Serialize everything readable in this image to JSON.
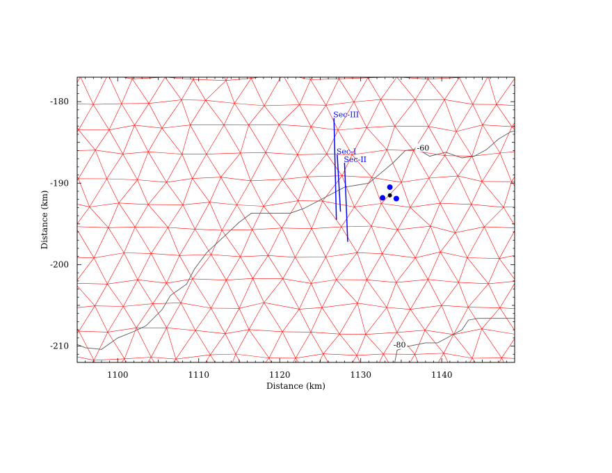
{
  "chart_data": {
    "type": "map",
    "title": "",
    "xlabel": "Distance (km)",
    "ylabel": "Distance (km)",
    "xlim": [
      1095,
      1149
    ],
    "ylim": [
      -212,
      -177
    ],
    "x_ticks": [
      1100,
      1110,
      1120,
      1130,
      1140
    ],
    "y_ticks": [
      -180,
      -190,
      -200,
      -210
    ],
    "x_tick_labels": [
      "1100",
      "1110",
      "1120",
      "1130",
      "1140"
    ],
    "y_tick_labels": [
      "-180",
      "-190",
      "-200",
      "-210"
    ],
    "mesh": {
      "description": "unstructured triangular mesh",
      "spacing_km": 3.6,
      "color": "#ff0000"
    },
    "sections": [
      {
        "name": "Sec-III",
        "color": "#0000ff",
        "start": [
          1126.7,
          -182.0
        ],
        "end": [
          1127.0,
          -194.5
        ]
      },
      {
        "name": "Sec-I",
        "color": "#0000ff",
        "start": [
          1127.1,
          -186.5
        ],
        "end": [
          1127.5,
          -193.5
        ]
      },
      {
        "name": "Sec-II",
        "color": "#0000ff",
        "start": [
          1128.0,
          -187.5
        ],
        "end": [
          1128.4,
          -197.2
        ]
      }
    ],
    "points_blue": [
      [
        1133.6,
        -190.5
      ],
      [
        1132.7,
        -191.8
      ],
      [
        1134.4,
        -191.9
      ]
    ],
    "points_black": [
      [
        1133.6,
        -191.5
      ]
    ],
    "contours": [
      {
        "label": "-60",
        "points": [
          [
            1121.3,
            -193.7
          ],
          [
            1123,
            -193.1
          ],
          [
            1125.5,
            -191.8
          ],
          [
            1128,
            -190.5
          ],
          [
            1131,
            -190.0
          ],
          [
            1132.8,
            -188.5
          ],
          [
            1134,
            -187.5
          ],
          [
            1135.5,
            -186.0
          ],
          [
            1137,
            -185.8
          ],
          [
            1138.5,
            -186.7
          ],
          [
            1140.5,
            -186.2
          ],
          [
            1142.5,
            -186.9
          ],
          [
            1144,
            -186.7
          ],
          [
            1145.5,
            -185.9
          ],
          [
            1147,
            -184.6
          ],
          [
            1148.5,
            -183.7
          ],
          [
            1149,
            -183.6
          ]
        ]
      },
      {
        "label": "",
        "points": [
          [
            1121.3,
            -193.7
          ],
          [
            1119,
            -193.7
          ],
          [
            1116.5,
            -193.7
          ],
          [
            1115,
            -194.8
          ],
          [
            1113.5,
            -196.2
          ],
          [
            1111,
            -198.5
          ],
          [
            1109.5,
            -200.5
          ],
          [
            1108.5,
            -202.4
          ],
          [
            1106.5,
            -203.8
          ],
          [
            1105.5,
            -205.5
          ],
          [
            1103.5,
            -207.5
          ],
          [
            1102,
            -208.2
          ],
          [
            1100,
            -209.0
          ],
          [
            1098,
            -210.4
          ],
          [
            1096,
            -210.2
          ],
          [
            1095,
            -209.8
          ]
        ]
      },
      {
        "label": "-80",
        "points": [
          [
            1134.2,
            -212
          ],
          [
            1134.5,
            -210.5
          ],
          [
            1136,
            -210.0
          ],
          [
            1138,
            -209.6
          ],
          [
            1139.5,
            -209.6
          ],
          [
            1141,
            -208.8
          ],
          [
            1142.5,
            -208.0
          ],
          [
            1143.3,
            -206.8
          ],
          [
            1144.5,
            -206.6
          ],
          [
            1146.5,
            -206.6
          ],
          [
            1149,
            -206.6
          ]
        ]
      }
    ],
    "contour_labels_pos": {
      "-60": [
        1137.7,
        -185.9
      ],
      "-80": [
        1134.8,
        -210.1
      ]
    },
    "grid": false,
    "legend": "none"
  }
}
